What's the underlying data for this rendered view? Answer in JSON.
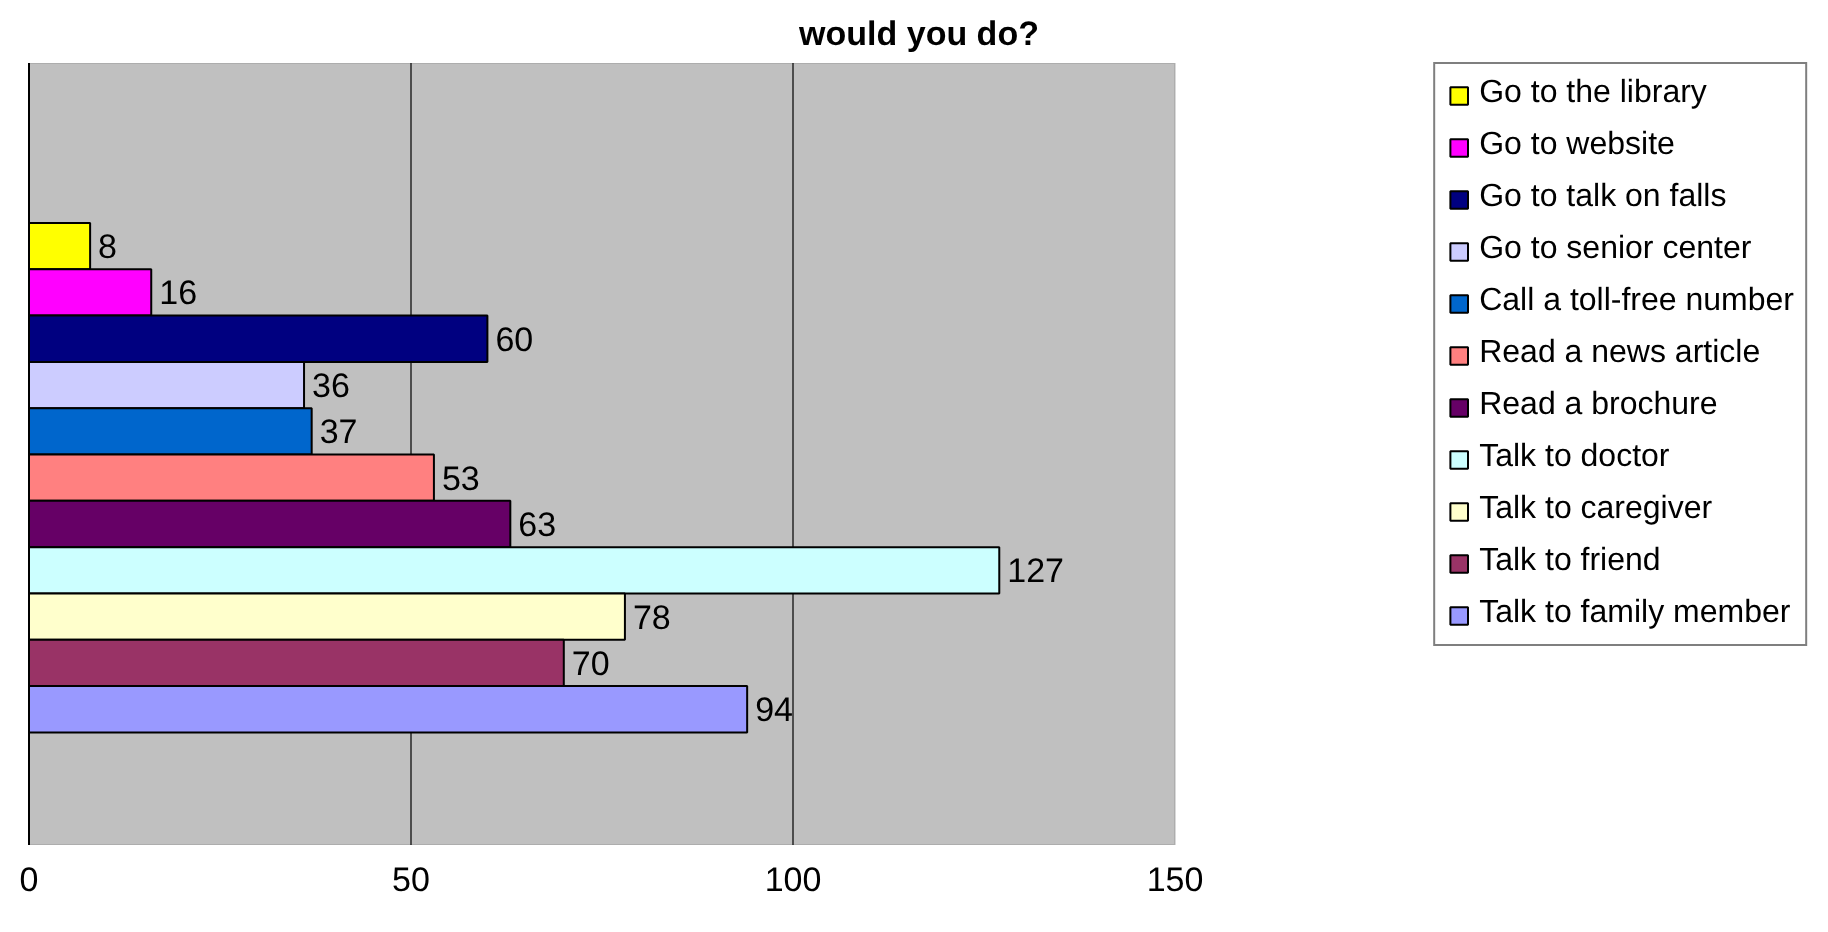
{
  "chart_data": {
    "type": "bar",
    "orientation": "horizontal",
    "title": "would you do?",
    "categories": [
      null
    ],
    "series": [
      {
        "name": "Go to the library",
        "color": "#ffff00",
        "values": [
          8
        ]
      },
      {
        "name": "Go to website",
        "color": "#ff00ff",
        "values": [
          16
        ]
      },
      {
        "name": "Go to talk on falls",
        "color": "#000080",
        "values": [
          60
        ]
      },
      {
        "name": "Go to senior center",
        "color": "#ccccff",
        "values": [
          36
        ]
      },
      {
        "name": "Call a toll-free number",
        "color": "#0066cc",
        "values": [
          37
        ]
      },
      {
        "name": "Read a news article",
        "color": "#ff8080",
        "values": [
          53
        ]
      },
      {
        "name": "Read a brochure",
        "color": "#660066",
        "values": [
          63
        ]
      },
      {
        "name": "Talk to doctor",
        "color": "#ccffff",
        "values": [
          127
        ]
      },
      {
        "name": "Talk to caregiver",
        "color": "#ffffcc",
        "values": [
          78
        ]
      },
      {
        "name": "Talk to friend",
        "color": "#993366",
        "values": [
          70
        ]
      },
      {
        "name": "Talk to family member",
        "color": "#9999ff",
        "values": [
          94
        ]
      }
    ],
    "xlim": [
      0,
      150
    ],
    "xticks": [
      0,
      50,
      100,
      150
    ],
    "grid": "x",
    "legend": "right",
    "tick_labels": "x",
    "data_labels": true
  }
}
